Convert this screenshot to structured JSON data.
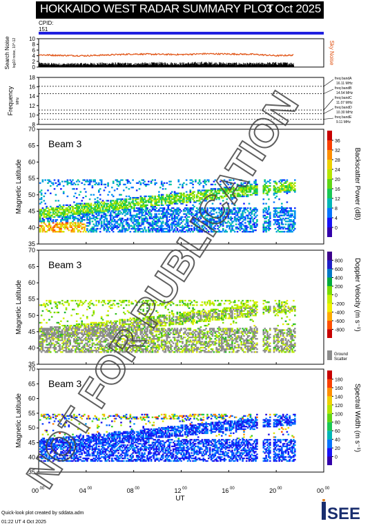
{
  "header": {
    "title": "HOKKAIDO WEST RADAR SUMMARY PLOT",
    "date": "3 Oct 2025",
    "cpid_label": "CPID:",
    "cpid_value": "151"
  },
  "colors": {
    "cpid_bar": "#2020e0",
    "noise_sky": "#e05010",
    "noise_search": "#000000",
    "ground_scatter": "#8c8c8c"
  },
  "footer": {
    "line1": "Quick-look plot created by sddata.adm",
    "line2": "01:22 UT 4 Oct 2025"
  },
  "logo": {
    "text": "ISEE"
  },
  "watermark": "NOT FOR PUBLICATION",
  "chart_data": [
    {
      "type": "line",
      "panel": "noise",
      "ylabel": "Search Noise",
      "ylabel_sub": "log10 noise, 10^-12",
      "ylabel_right": "Sky Noise",
      "ylim": [
        0,
        10
      ],
      "yticks": [
        "0",
        "2",
        "4",
        "6",
        "8",
        "10"
      ],
      "x": [
        0,
        2,
        4,
        6,
        8,
        10,
        12,
        14,
        16,
        18,
        20,
        21.5
      ],
      "series": [
        {
          "name": "Sky Noise",
          "values": [
            4.3,
            4.1,
            4.0,
            4.3,
            4.6,
            4.5,
            4.4,
            4.7,
            4.6,
            4.5,
            4.0,
            4.2
          ]
        },
        {
          "name": "Search Noise",
          "values": [
            1.2,
            1.0,
            1.1,
            1.2,
            1.1,
            1.3,
            1.2,
            1.4,
            1.2,
            1.1,
            1.3,
            1.2
          ]
        }
      ]
    },
    {
      "type": "line",
      "panel": "frequency",
      "ylabel": "Frequency",
      "ylabel_sub": "MHz",
      "ylim": [
        8,
        18
      ],
      "yticks": [
        "8",
        "10",
        "12",
        "14",
        "16",
        "18"
      ],
      "bands": [
        {
          "name": "freq bandA",
          "mhz_label": "16.11 MHz",
          "value": 16.11
        },
        {
          "name": "freq bandB",
          "mhz_label": "14.54 MHz",
          "value": 14.54
        },
        {
          "name": "freq bandC",
          "mhz_label": "11.07 MHz",
          "value": 11.07
        },
        {
          "name": "freq bandD",
          "mhz_label": "10.30 MHz",
          "value": 10.3
        },
        {
          "name": "freq bandE",
          "mhz_label": "9.11 MHz",
          "value": 9.11
        }
      ]
    },
    {
      "type": "heatmap",
      "panel": "power",
      "beam_label": "Beam 3",
      "ylabel": "Magnetic Latitude",
      "ylim": [
        35,
        70
      ],
      "yticks": [
        "35",
        "40",
        "45",
        "50",
        "55",
        "60",
        "65",
        "70"
      ],
      "colorbar_title": "Backscatter Power (dB)",
      "colorbar_ticks": [
        "0",
        "4",
        "8",
        "12",
        "16",
        "20",
        "24",
        "28",
        "32",
        "36"
      ],
      "crange": [
        0,
        40
      ]
    },
    {
      "type": "heatmap",
      "panel": "velocity",
      "beam_label": "Beam 3",
      "ylabel": "Magnetic Latitude",
      "ylim": [
        35,
        70
      ],
      "yticks": [
        "35",
        "40",
        "45",
        "50",
        "55",
        "60",
        "65",
        "70"
      ],
      "colorbar_title": "Doppler Velocity (m s⁻¹)",
      "colorbar_ticks": [
        "-800",
        "-600",
        "-400",
        "-200",
        "0",
        "200",
        "400",
        "600",
        "800"
      ],
      "crange": [
        -1000,
        1000
      ],
      "ground_scatter_label": [
        "Ground",
        "Scatter"
      ]
    },
    {
      "type": "heatmap",
      "panel": "width",
      "beam_label": "Beam 3",
      "ylabel": "Magnetic Latitude",
      "ylim": [
        35,
        70
      ],
      "yticks": [
        "35",
        "40",
        "45",
        "50",
        "55",
        "60",
        "65",
        "70"
      ],
      "colorbar_title": "Spectral Width (m s⁻¹)",
      "colorbar_ticks": [
        "0",
        "20",
        "40",
        "60",
        "80",
        "100",
        "120",
        "140",
        "160",
        "180"
      ],
      "crange": [
        0,
        200
      ]
    }
  ],
  "xaxis": {
    "label": "UT",
    "xlim": [
      0,
      24
    ],
    "ticks": [
      {
        "h": "00",
        "m": "00"
      },
      {
        "h": "04",
        "m": "00"
      },
      {
        "h": "08",
        "m": "00"
      },
      {
        "h": "12",
        "m": "00"
      },
      {
        "h": "16",
        "m": "00"
      },
      {
        "h": "20",
        "m": "00"
      },
      {
        "h": "00",
        "m": "00"
      }
    ]
  }
}
